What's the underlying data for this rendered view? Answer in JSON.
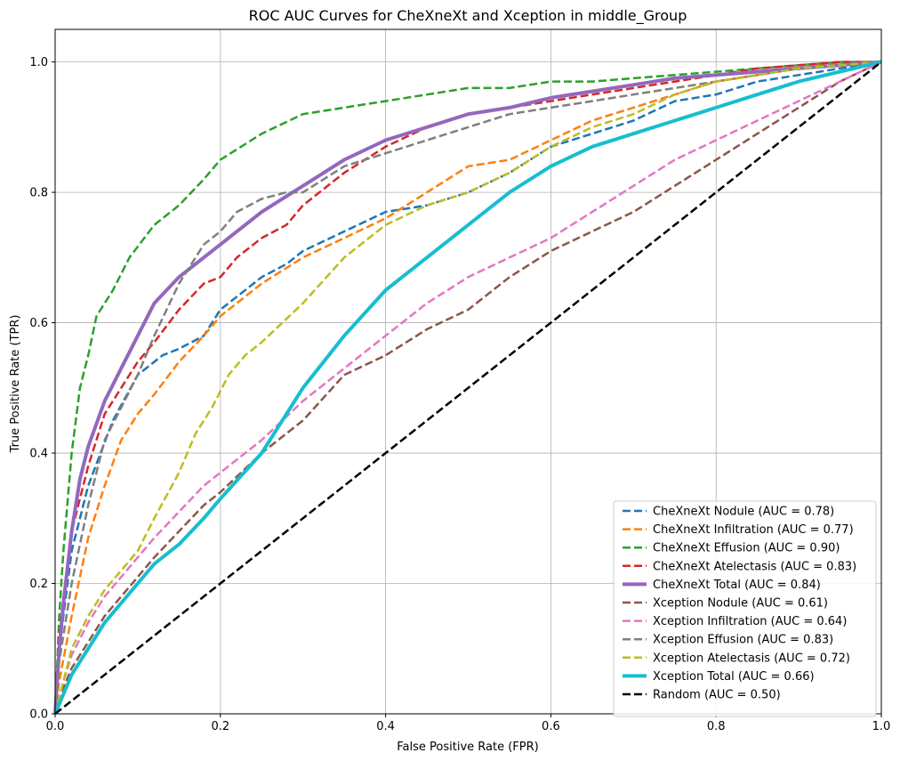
{
  "chart_data": {
    "type": "line",
    "title": "ROC AUC Curves for CheXneXt and Xception in middle_Group",
    "xlabel": "False Positive Rate (FPR)",
    "ylabel": "True Positive Rate (TPR)",
    "xlim": [
      0,
      1
    ],
    "ylim": [
      0,
      1.05
    ],
    "xticks": [
      "0.0",
      "0.2",
      "0.4",
      "0.6",
      "0.8",
      "1.0"
    ],
    "yticks": [
      "0.0",
      "0.2",
      "0.4",
      "0.6",
      "0.8",
      "1.0"
    ],
    "grid": true,
    "legend_position": "lower-right",
    "series": [
      {
        "name": "CheXneXt Nodule (AUC = 0.78)",
        "color": "#1f77b4",
        "dash": true,
        "width": 2.5,
        "x": [
          0,
          0.005,
          0.02,
          0.04,
          0.07,
          0.1,
          0.13,
          0.15,
          0.18,
          0.2,
          0.22,
          0.25,
          0.28,
          0.3,
          0.35,
          0.4,
          0.45,
          0.5,
          0.55,
          0.6,
          0.65,
          0.7,
          0.75,
          0.8,
          0.85,
          0.9,
          0.95,
          1.0
        ],
        "y": [
          0,
          0.1,
          0.25,
          0.35,
          0.45,
          0.52,
          0.55,
          0.56,
          0.58,
          0.62,
          0.64,
          0.67,
          0.69,
          0.71,
          0.74,
          0.77,
          0.78,
          0.8,
          0.83,
          0.87,
          0.89,
          0.91,
          0.94,
          0.95,
          0.97,
          0.98,
          0.99,
          1.0
        ]
      },
      {
        "name": "CheXneXt Infiltration (AUC = 0.77)",
        "color": "#ff7f0e",
        "dash": true,
        "width": 2.5,
        "x": [
          0,
          0.005,
          0.02,
          0.04,
          0.06,
          0.08,
          0.1,
          0.12,
          0.15,
          0.18,
          0.2,
          0.25,
          0.3,
          0.35,
          0.4,
          0.45,
          0.5,
          0.55,
          0.6,
          0.65,
          0.7,
          0.75,
          0.8,
          0.85,
          0.9,
          0.95,
          1.0
        ],
        "y": [
          0,
          0.05,
          0.15,
          0.27,
          0.35,
          0.42,
          0.46,
          0.49,
          0.54,
          0.58,
          0.61,
          0.66,
          0.7,
          0.73,
          0.76,
          0.8,
          0.84,
          0.85,
          0.88,
          0.91,
          0.93,
          0.95,
          0.97,
          0.98,
          0.99,
          1.0,
          1.0
        ]
      },
      {
        "name": "CheXneXt Effusion (AUC = 0.90)",
        "color": "#2ca02c",
        "dash": true,
        "width": 2.5,
        "x": [
          0,
          0.005,
          0.01,
          0.02,
          0.03,
          0.04,
          0.05,
          0.07,
          0.09,
          0.12,
          0.15,
          0.18,
          0.2,
          0.25,
          0.3,
          0.35,
          0.4,
          0.45,
          0.5,
          0.55,
          0.6,
          0.65,
          0.7,
          0.75,
          0.8,
          0.85,
          0.9,
          0.95,
          1.0
        ],
        "y": [
          0,
          0.15,
          0.25,
          0.4,
          0.5,
          0.55,
          0.61,
          0.65,
          0.7,
          0.75,
          0.78,
          0.82,
          0.85,
          0.89,
          0.92,
          0.93,
          0.94,
          0.95,
          0.96,
          0.96,
          0.97,
          0.97,
          0.975,
          0.98,
          0.985,
          0.99,
          0.995,
          1.0,
          1.0
        ]
      },
      {
        "name": "CheXneXt Atelectasis (AUC = 0.83)",
        "color": "#d62728",
        "dash": true,
        "width": 2.5,
        "x": [
          0,
          0.005,
          0.02,
          0.04,
          0.06,
          0.08,
          0.1,
          0.12,
          0.15,
          0.18,
          0.2,
          0.22,
          0.25,
          0.28,
          0.3,
          0.35,
          0.4,
          0.45,
          0.5,
          0.55,
          0.6,
          0.65,
          0.7,
          0.75,
          0.8,
          0.85,
          0.9,
          0.95,
          1.0
        ],
        "y": [
          0,
          0.12,
          0.28,
          0.38,
          0.46,
          0.5,
          0.54,
          0.57,
          0.62,
          0.66,
          0.67,
          0.7,
          0.73,
          0.75,
          0.78,
          0.83,
          0.87,
          0.9,
          0.92,
          0.93,
          0.94,
          0.95,
          0.96,
          0.97,
          0.98,
          0.99,
          0.995,
          1.0,
          1.0
        ]
      },
      {
        "name": "CheXneXt Total (AUC = 0.84)",
        "color": "#9467bd",
        "dash": false,
        "width": 4,
        "x": [
          0,
          0.005,
          0.01,
          0.02,
          0.03,
          0.04,
          0.06,
          0.08,
          0.1,
          0.12,
          0.15,
          0.18,
          0.2,
          0.25,
          0.3,
          0.35,
          0.4,
          0.45,
          0.5,
          0.55,
          0.6,
          0.65,
          0.7,
          0.75,
          0.8,
          0.85,
          0.9,
          0.95,
          1.0
        ],
        "y": [
          0,
          0.1,
          0.17,
          0.28,
          0.36,
          0.41,
          0.48,
          0.53,
          0.58,
          0.63,
          0.67,
          0.7,
          0.72,
          0.77,
          0.81,
          0.85,
          0.88,
          0.9,
          0.92,
          0.93,
          0.945,
          0.955,
          0.965,
          0.975,
          0.98,
          0.985,
          0.99,
          0.995,
          1.0
        ]
      },
      {
        "name": "Xception Nodule (AUC = 0.61)",
        "color": "#8c564b",
        "dash": true,
        "width": 2.5,
        "x": [
          0,
          0.01,
          0.02,
          0.04,
          0.06,
          0.08,
          0.1,
          0.12,
          0.15,
          0.18,
          0.2,
          0.25,
          0.3,
          0.35,
          0.4,
          0.45,
          0.5,
          0.55,
          0.6,
          0.65,
          0.7,
          0.75,
          0.8,
          0.85,
          0.9,
          0.95,
          1.0
        ],
        "y": [
          0,
          0.04,
          0.07,
          0.11,
          0.15,
          0.18,
          0.21,
          0.24,
          0.28,
          0.32,
          0.34,
          0.4,
          0.45,
          0.52,
          0.55,
          0.59,
          0.62,
          0.67,
          0.71,
          0.74,
          0.77,
          0.81,
          0.85,
          0.89,
          0.93,
          0.97,
          1.0
        ]
      },
      {
        "name": "Xception Infiltration (AUC = 0.64)",
        "color": "#e377c2",
        "dash": true,
        "width": 2.5,
        "x": [
          0,
          0.01,
          0.02,
          0.04,
          0.06,
          0.08,
          0.1,
          0.12,
          0.15,
          0.18,
          0.2,
          0.25,
          0.3,
          0.35,
          0.4,
          0.45,
          0.5,
          0.55,
          0.6,
          0.65,
          0.7,
          0.75,
          0.8,
          0.85,
          0.9,
          0.95,
          1.0
        ],
        "y": [
          0,
          0.05,
          0.09,
          0.14,
          0.18,
          0.21,
          0.24,
          0.27,
          0.31,
          0.35,
          0.37,
          0.42,
          0.48,
          0.53,
          0.58,
          0.63,
          0.67,
          0.7,
          0.73,
          0.77,
          0.81,
          0.85,
          0.88,
          0.91,
          0.94,
          0.97,
          1.0
        ]
      },
      {
        "name": "Xception Effusion (AUC = 0.83)",
        "color": "#7f7f7f",
        "dash": true,
        "width": 2.5,
        "x": [
          0,
          0.005,
          0.02,
          0.04,
          0.06,
          0.08,
          0.1,
          0.12,
          0.15,
          0.18,
          0.2,
          0.22,
          0.25,
          0.28,
          0.3,
          0.35,
          0.4,
          0.45,
          0.5,
          0.55,
          0.6,
          0.65,
          0.7,
          0.75,
          0.8,
          0.85,
          0.9,
          0.95,
          1.0
        ],
        "y": [
          0,
          0.08,
          0.2,
          0.32,
          0.42,
          0.47,
          0.52,
          0.58,
          0.66,
          0.72,
          0.74,
          0.77,
          0.79,
          0.8,
          0.8,
          0.84,
          0.86,
          0.88,
          0.9,
          0.92,
          0.93,
          0.94,
          0.95,
          0.96,
          0.97,
          0.98,
          0.99,
          0.995,
          1.0
        ]
      },
      {
        "name": "Xception Atelectasis (AUC = 0.72)",
        "color": "#bcbd22",
        "dash": true,
        "width": 2.5,
        "x": [
          0,
          0.01,
          0.02,
          0.04,
          0.06,
          0.08,
          0.1,
          0.12,
          0.15,
          0.17,
          0.19,
          0.21,
          0.23,
          0.25,
          0.3,
          0.35,
          0.4,
          0.45,
          0.5,
          0.55,
          0.6,
          0.65,
          0.7,
          0.75,
          0.8,
          0.85,
          0.9,
          0.95,
          1.0
        ],
        "y": [
          0,
          0.05,
          0.1,
          0.15,
          0.19,
          0.22,
          0.25,
          0.3,
          0.37,
          0.43,
          0.47,
          0.52,
          0.55,
          0.57,
          0.63,
          0.7,
          0.75,
          0.78,
          0.8,
          0.83,
          0.87,
          0.9,
          0.92,
          0.95,
          0.97,
          0.98,
          0.99,
          0.995,
          1.0
        ]
      },
      {
        "name": "Xception Total (AUC = 0.66)",
        "color": "#17becf",
        "dash": false,
        "width": 4,
        "x": [
          0,
          0.01,
          0.02,
          0.04,
          0.06,
          0.08,
          0.1,
          0.12,
          0.15,
          0.18,
          0.2,
          0.25,
          0.3,
          0.35,
          0.4,
          0.45,
          0.5,
          0.55,
          0.6,
          0.65,
          0.7,
          0.75,
          0.8,
          0.85,
          0.9,
          0.95,
          1.0
        ],
        "y": [
          0,
          0.03,
          0.06,
          0.1,
          0.14,
          0.17,
          0.2,
          0.23,
          0.26,
          0.3,
          0.33,
          0.4,
          0.5,
          0.58,
          0.65,
          0.7,
          0.75,
          0.8,
          0.84,
          0.87,
          0.89,
          0.91,
          0.93,
          0.95,
          0.97,
          0.985,
          1.0
        ]
      },
      {
        "name": "Random (AUC = 0.50)",
        "color": "#000000",
        "dash": true,
        "width": 2.5,
        "x": [
          0,
          1
        ],
        "y": [
          0,
          1
        ]
      }
    ]
  }
}
